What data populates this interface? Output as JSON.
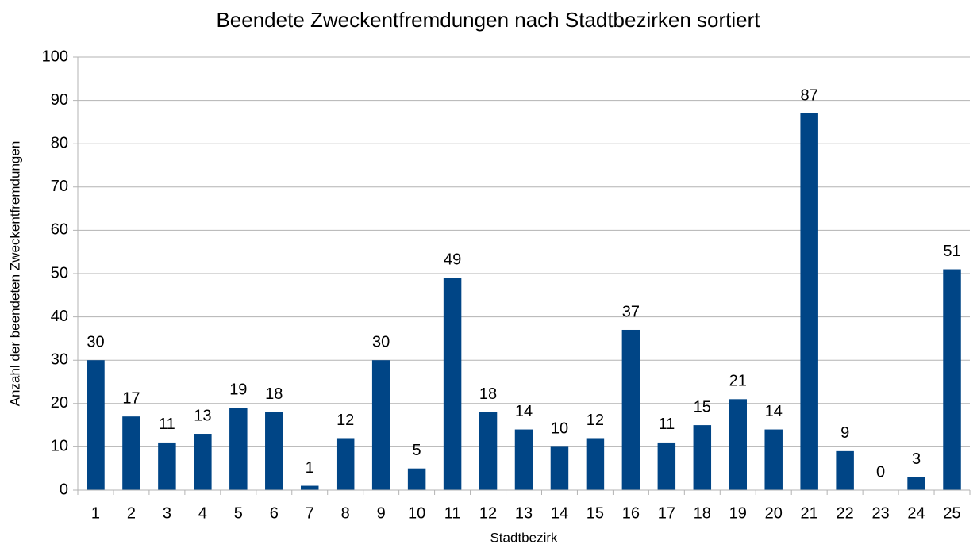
{
  "chart_data": {
    "type": "bar",
    "title": "Beendete Zweckentfremdungen nach Stadtbezirken sortiert",
    "x_label": "Stadtbezirk",
    "y_label": "Anzahl der beendeten Zweckentfremdungen",
    "categories": [
      "1",
      "2",
      "3",
      "4",
      "5",
      "6",
      "7",
      "8",
      "9",
      "10",
      "11",
      "12",
      "13",
      "14",
      "15",
      "16",
      "17",
      "18",
      "19",
      "20",
      "21",
      "22",
      "23",
      "24",
      "25"
    ],
    "values": [
      30,
      17,
      11,
      13,
      19,
      18,
      1,
      12,
      30,
      5,
      49,
      18,
      14,
      10,
      12,
      37,
      11,
      15,
      21,
      14,
      87,
      9,
      0,
      3,
      51
    ],
    "color": "#004586",
    "ylim": [
      0,
      100
    ],
    "yticks": [
      0,
      10,
      20,
      30,
      40,
      50,
      60,
      70,
      80,
      90,
      100
    ],
    "grid": true
  }
}
